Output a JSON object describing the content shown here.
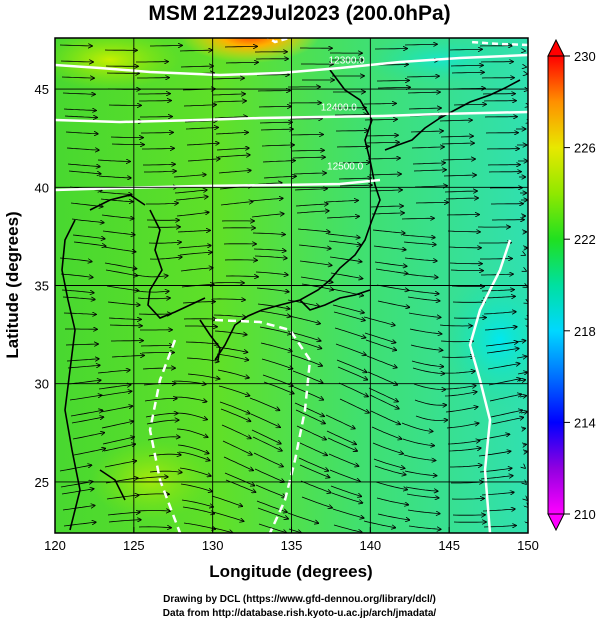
{
  "title": "MSM 21Z29Jul2023 (200.0hPa)",
  "axes": {
    "xlabel": "Longitude (degrees)",
    "ylabel": "Latitude  (degrees)",
    "xlim": [
      120,
      150
    ],
    "ylim": [
      22.4,
      47.6
    ],
    "xticks": [
      120,
      125,
      130,
      135,
      140,
      145,
      150
    ],
    "yticks": [
      25,
      30,
      35,
      40,
      45
    ]
  },
  "colorbar": {
    "min": 210,
    "max": 230,
    "ticks": [
      210,
      214,
      218,
      222,
      226,
      230
    ]
  },
  "contour_labels": [
    {
      "text": "12300.0",
      "lon": 138.5,
      "lat": 46.3
    },
    {
      "text": "12400.0",
      "lon": 138.0,
      "lat": 43.9
    },
    {
      "text": "12500.0",
      "lon": 138.4,
      "lat": 40.9
    }
  ],
  "credits": {
    "line1": "Drawing by DCL (https://www.gfd-dennou.org/library/dcl/)",
    "line2": "Data from http://database.rish.kyoto-u.ac.jp/arch/jmadata/"
  }
}
